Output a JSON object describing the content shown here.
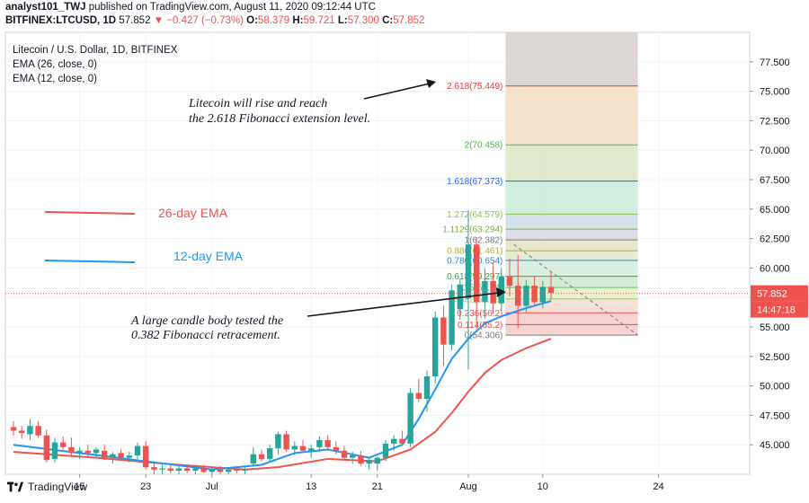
{
  "header": {
    "publisher": "analyst101_TWJ",
    "published_text": "published on TradingView.com, August 11, 2020 09:12:44 UTC",
    "symbol": "BITFINEX:LTCUSD, 1D",
    "last": "57.852",
    "change": "▼ −0.427 (−0.73%)",
    "o_label": "O:",
    "o": "58.379",
    "h_label": "H:",
    "h": "59.721",
    "l_label": "L:",
    "l": "57.300",
    "c_label": "C:",
    "c": "57.852"
  },
  "legend": {
    "title": "Litecoin / U.S. Dollar, 1D, BITFINEX",
    "ema26": "EMA (26, close, 0)",
    "ema12": "EMA (12, close, 0)"
  },
  "annotations": {
    "rise_line1": "Litecoin will rise and reach",
    "rise_line2": "the 2.618 Fibonacci extension level.",
    "candle_line1": "A large candle body tested the",
    "candle_line2": "0.382 Fibonacci retracement.",
    "ema26_label": "26-day EMA",
    "ema12_label": "12-day EMA"
  },
  "footer": {
    "brand": "TradingView"
  },
  "colors": {
    "bull": "#26a69a",
    "bear": "#ef5350",
    "ema26": "#ef5350",
    "ema12": "#2196f3",
    "price_line": "#ef5350"
  },
  "chart_data": {
    "type": "candlestick",
    "ylim": [
      42.5,
      80
    ],
    "y_ticks": [
      "45.000",
      "47.500",
      "50.000",
      "52.500",
      "55.000",
      "57.500",
      "60.000",
      "62.500",
      "65.000",
      "67.500",
      "70.000",
      "72.500",
      "75.000",
      "77.500"
    ],
    "x_tick_labels": [
      {
        "label": "15",
        "index": 8
      },
      {
        "label": "23",
        "index": 16
      },
      {
        "label": "Jul",
        "index": 24
      },
      {
        "label": "13",
        "index": 36
      },
      {
        "label": "21",
        "index": 44
      },
      {
        "label": "Aug",
        "index": 55
      },
      {
        "label": "10",
        "index": 64
      },
      {
        "label": "24",
        "index": 78
      }
    ],
    "last_price": "57.852",
    "countdown": "14:47:18",
    "fibonacci": [
      {
        "label": "2.618(75.449)",
        "value": 75.449,
        "color": "#e53935"
      },
      {
        "label": "2(70.458)",
        "value": 70.458,
        "color": "#4caf50"
      },
      {
        "label": "1.618(67.373)",
        "value": 67.373,
        "color": "#2962ff"
      },
      {
        "label": "1.272(64.579)",
        "value": 64.579,
        "color": "#8bc34a"
      },
      {
        "label": "1.1129(63.294)",
        "value": 63.294,
        "color": "#7cb342"
      },
      {
        "label": "1(62.382)",
        "value": 62.382,
        "color": "#787b86"
      },
      {
        "label": "0.886(61.461)",
        "value": 61.461,
        "color": "#afb42b"
      },
      {
        "label": "0.786(60.654)",
        "value": 60.654,
        "color": "#1e88e5"
      },
      {
        "label": "0.618(59.297)",
        "value": 59.297,
        "color": "#43a047"
      },
      {
        "label": "0.5(58.34)",
        "value": 58.34,
        "color": "#66bb6a"
      },
      {
        "label": "0.382(57.38)",
        "value": 57.38,
        "color": "#9ccc65"
      },
      {
        "label": "0.236(56.2)",
        "value": 56.2,
        "color": "#ef5350"
      },
      {
        "label": "0.114(55.2)",
        "value": 55.2,
        "color": "#f44336"
      },
      {
        "label": "0(54.306)",
        "value": 54.306,
        "color": "#787b86"
      }
    ],
    "candles": [
      {
        "o": 46.5,
        "h": 47.0,
        "l": 45.8,
        "c": 46.2
      },
      {
        "o": 46.2,
        "h": 46.6,
        "l": 45.5,
        "c": 46.0
      },
      {
        "o": 45.9,
        "h": 47.2,
        "l": 45.4,
        "c": 46.6
      },
      {
        "o": 46.6,
        "h": 47.0,
        "l": 45.6,
        "c": 45.8
      },
      {
        "o": 45.8,
        "h": 46.3,
        "l": 43.5,
        "c": 43.7
      },
      {
        "o": 43.8,
        "h": 45.6,
        "l": 43.5,
        "c": 45.2
      },
      {
        "o": 45.2,
        "h": 45.7,
        "l": 44.6,
        "c": 44.8
      },
      {
        "o": 44.8,
        "h": 45.6,
        "l": 44.0,
        "c": 44.3
      },
      {
        "o": 44.3,
        "h": 44.8,
        "l": 43.8,
        "c": 44.5
      },
      {
        "o": 44.5,
        "h": 45.0,
        "l": 44.0,
        "c": 44.3
      },
      {
        "o": 44.3,
        "h": 44.8,
        "l": 43.9,
        "c": 44.6
      },
      {
        "o": 44.5,
        "h": 45.0,
        "l": 43.7,
        "c": 43.9
      },
      {
        "o": 43.9,
        "h": 44.4,
        "l": 43.4,
        "c": 44.2
      },
      {
        "o": 44.3,
        "h": 44.6,
        "l": 43.7,
        "c": 43.9
      },
      {
        "o": 43.9,
        "h": 44.4,
        "l": 43.5,
        "c": 44.1
      },
      {
        "o": 44.1,
        "h": 45.2,
        "l": 43.8,
        "c": 44.9
      },
      {
        "o": 44.9,
        "h": 45.3,
        "l": 42.9,
        "c": 43.1
      },
      {
        "o": 43.1,
        "h": 43.6,
        "l": 42.5,
        "c": 42.9
      },
      {
        "o": 42.9,
        "h": 43.3,
        "l": 42.5,
        "c": 43.0
      },
      {
        "o": 43.0,
        "h": 43.3,
        "l": 42.6,
        "c": 42.8
      },
      {
        "o": 42.8,
        "h": 43.2,
        "l": 42.5,
        "c": 43.0
      },
      {
        "o": 43.0,
        "h": 43.3,
        "l": 42.6,
        "c": 42.8
      },
      {
        "o": 42.8,
        "h": 43.2,
        "l": 42.5,
        "c": 43.0
      },
      {
        "o": 43.0,
        "h": 43.3,
        "l": 42.6,
        "c": 42.7
      },
      {
        "o": 42.7,
        "h": 43.1,
        "l": 42.5,
        "c": 42.9
      },
      {
        "o": 42.9,
        "h": 43.2,
        "l": 42.5,
        "c": 42.7
      },
      {
        "o": 42.7,
        "h": 43.0,
        "l": 42.5,
        "c": 42.9
      },
      {
        "o": 42.9,
        "h": 43.2,
        "l": 42.6,
        "c": 42.8
      },
      {
        "o": 42.8,
        "h": 43.1,
        "l": 42.5,
        "c": 42.9
      },
      {
        "o": 43.4,
        "h": 44.8,
        "l": 43.2,
        "c": 44.2
      },
      {
        "o": 44.2,
        "h": 44.6,
        "l": 43.6,
        "c": 43.8
      },
      {
        "o": 43.8,
        "h": 45.0,
        "l": 43.5,
        "c": 44.7
      },
      {
        "o": 44.7,
        "h": 46.1,
        "l": 44.2,
        "c": 45.9
      },
      {
        "o": 45.9,
        "h": 46.2,
        "l": 44.4,
        "c": 44.6
      },
      {
        "o": 44.6,
        "h": 45.3,
        "l": 44.1,
        "c": 44.9
      },
      {
        "o": 44.9,
        "h": 45.4,
        "l": 44.3,
        "c": 44.5
      },
      {
        "o": 44.5,
        "h": 45.0,
        "l": 43.9,
        "c": 44.7
      },
      {
        "o": 44.8,
        "h": 45.7,
        "l": 44.4,
        "c": 45.4
      },
      {
        "o": 45.4,
        "h": 45.8,
        "l": 44.6,
        "c": 44.8
      },
      {
        "o": 44.8,
        "h": 45.3,
        "l": 44.2,
        "c": 44.5
      },
      {
        "o": 44.5,
        "h": 44.9,
        "l": 43.7,
        "c": 43.9
      },
      {
        "o": 43.9,
        "h": 44.4,
        "l": 43.4,
        "c": 44.1
      },
      {
        "o": 44.1,
        "h": 44.5,
        "l": 43.2,
        "c": 43.4
      },
      {
        "o": 43.4,
        "h": 43.9,
        "l": 42.9,
        "c": 43.7
      },
      {
        "o": 43.4,
        "h": 44.0,
        "l": 42.8,
        "c": 43.9
      },
      {
        "o": 43.9,
        "h": 45.4,
        "l": 43.6,
        "c": 45.1
      },
      {
        "o": 45.1,
        "h": 45.8,
        "l": 44.5,
        "c": 45.5
      },
      {
        "o": 45.5,
        "h": 46.2,
        "l": 44.9,
        "c": 45.1
      },
      {
        "o": 45.1,
        "h": 49.8,
        "l": 44.8,
        "c": 49.4
      },
      {
        "o": 49.4,
        "h": 50.6,
        "l": 48.6,
        "c": 48.9
      },
      {
        "o": 48.9,
        "h": 51.3,
        "l": 47.8,
        "c": 50.8
      },
      {
        "o": 50.8,
        "h": 56.3,
        "l": 50.2,
        "c": 55.8
      },
      {
        "o": 55.8,
        "h": 56.8,
        "l": 51.7,
        "c": 53.5
      },
      {
        "o": 53.5,
        "h": 58.6,
        "l": 53.0,
        "c": 58.1
      },
      {
        "o": 56.5,
        "h": 59.1,
        "l": 55.6,
        "c": 58.6
      },
      {
        "o": 57.4,
        "h": 64.9,
        "l": 51.4,
        "c": 62.0
      },
      {
        "o": 62.0,
        "h": 62.6,
        "l": 54.8,
        "c": 57.1
      },
      {
        "o": 57.1,
        "h": 60.0,
        "l": 55.7,
        "c": 58.9
      },
      {
        "o": 58.9,
        "h": 60.4,
        "l": 56.1,
        "c": 57.0
      },
      {
        "o": 57.0,
        "h": 60.0,
        "l": 56.4,
        "c": 59.3
      },
      {
        "o": 59.3,
        "h": 60.8,
        "l": 57.6,
        "c": 58.5
      },
      {
        "o": 58.5,
        "h": 61.1,
        "l": 54.9,
        "c": 56.8
      },
      {
        "o": 56.8,
        "h": 59.0,
        "l": 56.2,
        "c": 58.5
      },
      {
        "o": 58.5,
        "h": 59.3,
        "l": 56.9,
        "c": 57.1
      },
      {
        "o": 57.1,
        "h": 58.9,
        "l": 56.6,
        "c": 58.4
      },
      {
        "o": 58.4,
        "h": 59.7,
        "l": 57.3,
        "c": 57.9
      }
    ],
    "ema26": [
      {
        "i": 0,
        "v": 44.4
      },
      {
        "i": 10,
        "v": 43.9
      },
      {
        "i": 20,
        "v": 43.3
      },
      {
        "i": 28,
        "v": 42.9
      },
      {
        "i": 32,
        "v": 43.1
      },
      {
        "i": 38,
        "v": 43.8
      },
      {
        "i": 44,
        "v": 43.6
      },
      {
        "i": 48,
        "v": 44.6
      },
      {
        "i": 51,
        "v": 46.1
      },
      {
        "i": 53,
        "v": 47.7
      },
      {
        "i": 55,
        "v": 49.5
      },
      {
        "i": 57,
        "v": 51.1
      },
      {
        "i": 59,
        "v": 52.2
      },
      {
        "i": 62,
        "v": 53.2
      },
      {
        "i": 65,
        "v": 54.0
      }
    ],
    "ema12": [
      {
        "i": 0,
        "v": 45.0
      },
      {
        "i": 8,
        "v": 44.3
      },
      {
        "i": 16,
        "v": 43.6
      },
      {
        "i": 24,
        "v": 42.9
      },
      {
        "i": 30,
        "v": 43.3
      },
      {
        "i": 34,
        "v": 44.3
      },
      {
        "i": 38,
        "v": 44.6
      },
      {
        "i": 43,
        "v": 43.9
      },
      {
        "i": 47,
        "v": 45.0
      },
      {
        "i": 49,
        "v": 47.2
      },
      {
        "i": 51,
        "v": 49.7
      },
      {
        "i": 53,
        "v": 52.3
      },
      {
        "i": 55,
        "v": 54.0
      },
      {
        "i": 57,
        "v": 55.3
      },
      {
        "i": 59,
        "v": 55.9
      },
      {
        "i": 62,
        "v": 56.6
      },
      {
        "i": 65,
        "v": 57.2
      }
    ]
  }
}
